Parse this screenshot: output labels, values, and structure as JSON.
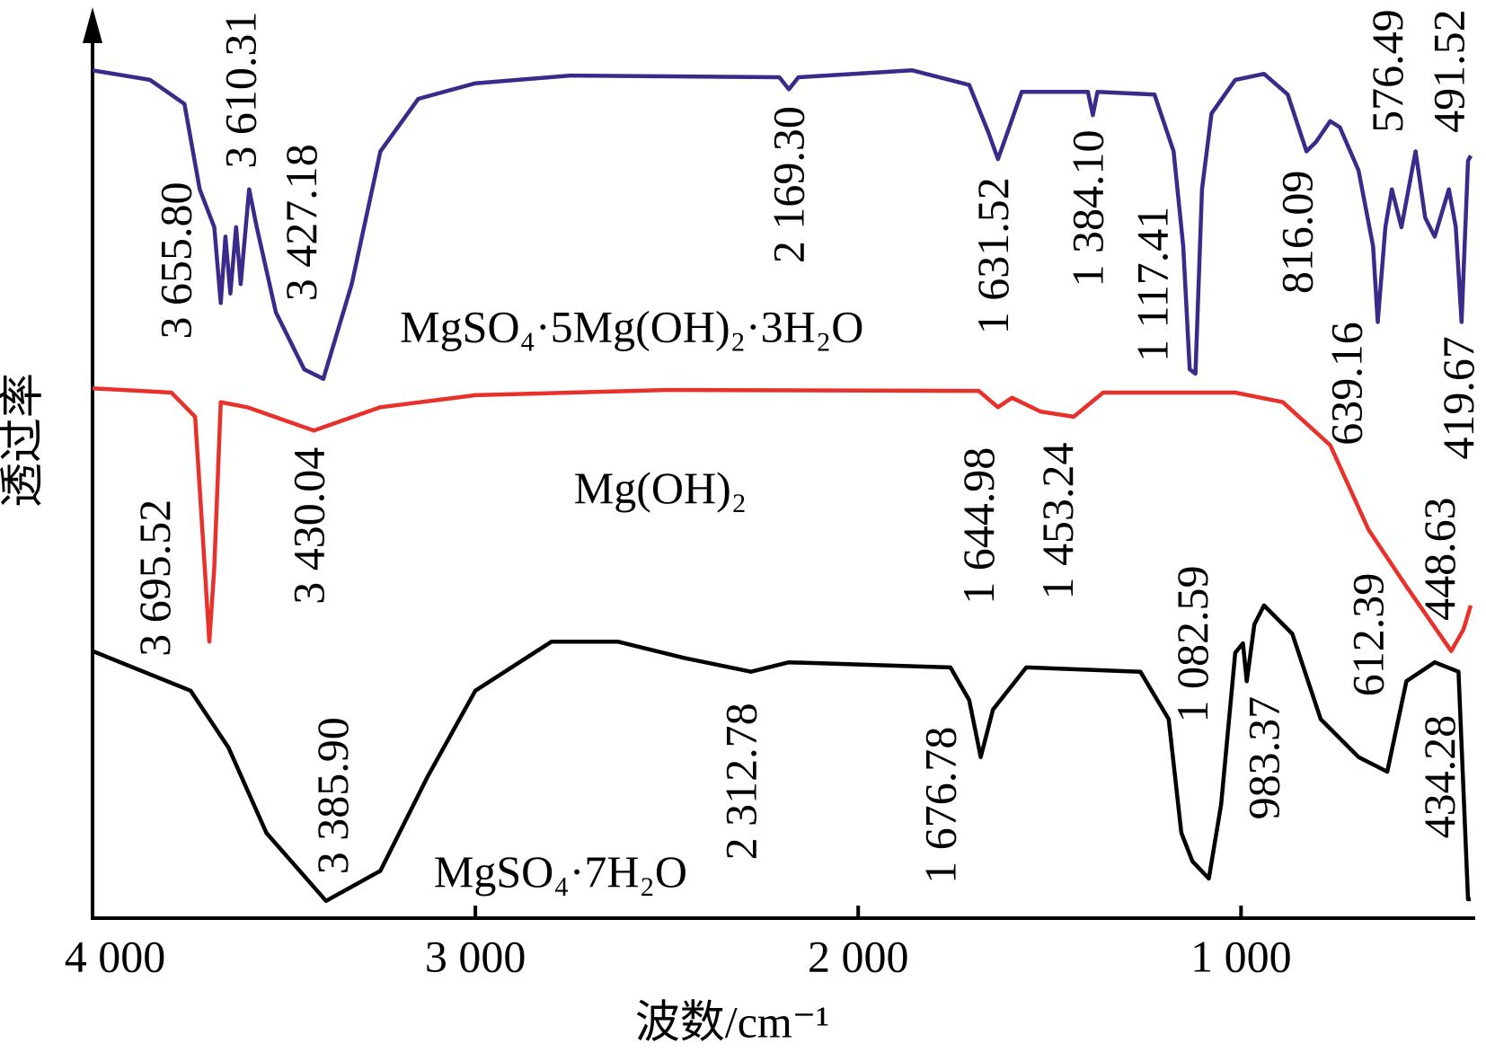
{
  "chart_data": {
    "type": "line",
    "xlabel": "波数/cm⁻¹",
    "ylabel": "透过率",
    "xlim": [
      4000,
      400
    ],
    "ylim": [
      0,
      100
    ],
    "xticks": [
      {
        "value": 4000,
        "label": "4 000"
      },
      {
        "value": 3000,
        "label": "3 000"
      },
      {
        "value": 2000,
        "label": "2 000"
      },
      {
        "value": 1000,
        "label": "1 000"
      }
    ],
    "series": [
      {
        "name": "MgSO₄·5Mg(OH)₂·3H₂O",
        "color": "#3b2a8a",
        "x": [
          4000,
          3850,
          3760,
          3720,
          3682,
          3665,
          3653,
          3640,
          3625,
          3613,
          3591,
          3571,
          3521,
          3447,
          3397,
          3323,
          3248,
          3149,
          3000,
          2752,
          2206,
          2181,
          2156,
          1859,
          1710,
          1660,
          1635,
          1610,
          1573,
          1400,
          1387,
          1375,
          1226,
          1176,
          1151,
          1134,
          1119,
          1102,
          1077,
          1015,
          940,
          878,
          829,
          804,
          767,
          742,
          693,
          655,
          643,
          623,
          606,
          581,
          544,
          519,
          494,
          457,
          439,
          424,
          407,
          400
        ],
        "values": [
          98.4,
          97.3,
          94.5,
          84.6,
          80.2,
          71.4,
          79.1,
          72.5,
          80.2,
          73.6,
          84.6,
          80.2,
          70.3,
          63.7,
          62.6,
          73.6,
          89.0,
          95.1,
          96.9,
          97.8,
          97.6,
          96.2,
          97.6,
          98.4,
          96.7,
          91.2,
          88.1,
          91.2,
          95.9,
          95.9,
          93.2,
          95.9,
          95.6,
          89.0,
          78.0,
          63.7,
          63.2,
          84.6,
          93.4,
          97.3,
          98.0,
          95.6,
          89.0,
          90.1,
          92.5,
          91.8,
          86.8,
          78.0,
          69.2,
          80.2,
          84.6,
          80.2,
          89.0,
          81.3,
          79.1,
          84.6,
          80.2,
          69.2,
          87.9,
          88.5
        ]
      },
      {
        "name": "Mg(OH)₂",
        "color": "#e8312a",
        "x": [
          4000,
          3794,
          3732,
          3707,
          3695,
          3682,
          3665,
          3596,
          3422,
          3248,
          3000,
          2504,
          1685,
          1635,
          1598,
          1524,
          1437,
          1360,
          1015,
          891,
          767,
          667,
          568,
          451,
          419,
          400
        ],
        "values": [
          61.5,
          61.0,
          58.2,
          40.7,
          32.1,
          40.7,
          59.9,
          59.3,
          56.6,
          59.3,
          60.7,
          61.3,
          61.2,
          59.3,
          60.4,
          58.8,
          58.2,
          61.0,
          61.0,
          59.9,
          54.9,
          45.1,
          38.5,
          31.0,
          33.5,
          36.3
        ]
      },
      {
        "name": "MgSO₄·7H₂O",
        "color": "#000000",
        "x": [
          4000,
          3744,
          3645,
          3546,
          3390,
          3248,
          3124,
          3000,
          2801,
          2628,
          2454,
          2280,
          2181,
          1759,
          1710,
          1680,
          1648,
          1561,
          1263,
          1189,
          1156,
          1127,
          1084,
          1052,
          1015,
          995,
          985,
          965,
          940,
          866,
          792,
          693,
          618,
          568,
          494,
          432,
          407,
          400
        ],
        "values": [
          31.0,
          26.4,
          19.8,
          9.9,
          2.0,
          5.5,
          16.5,
          26.4,
          32.1,
          32.1,
          30.2,
          28.6,
          29.7,
          29.1,
          25.3,
          18.7,
          24.2,
          29.1,
          28.6,
          23.1,
          9.9,
          6.6,
          4.6,
          13.2,
          30.8,
          31.9,
          27.5,
          34.1,
          36.3,
          33.0,
          23.1,
          18.7,
          17.0,
          27.5,
          29.7,
          28.6,
          2.2,
          2.2
        ]
      }
    ],
    "annotations": [
      {
        "value": 3655.8,
        "label": "3 655.80"
      },
      {
        "value": 3610.31,
        "label": "3 610.31"
      },
      {
        "value": 3427.18,
        "label": "3 427.18"
      },
      {
        "value": 2169.3,
        "label": "2 169.30"
      },
      {
        "value": 1631.52,
        "label": "1 631.52"
      },
      {
        "value": 1384.1,
        "label": "1 384.10"
      },
      {
        "value": 1117.41,
        "label": "1 117.41"
      },
      {
        "value": 816.09,
        "label": "816.09"
      },
      {
        "value": 639.16,
        "label": "639.16"
      },
      {
        "value": 576.49,
        "label": "576.49"
      },
      {
        "value": 491.52,
        "label": "491.52"
      },
      {
        "value": 419.67,
        "label": "419.67"
      },
      {
        "value": 3695.52,
        "label": "3 695.52"
      },
      {
        "value": 3430.04,
        "label": "3 430.04"
      },
      {
        "value": 1644.98,
        "label": "1 644.98"
      },
      {
        "value": 1453.24,
        "label": "1 453.24"
      },
      {
        "value": 448.63,
        "label": "448.63"
      },
      {
        "value": 3385.9,
        "label": "3 385.90"
      },
      {
        "value": 2312.78,
        "label": "2 312.78"
      },
      {
        "value": 1676.78,
        "label": "1 676.78"
      },
      {
        "value": 1082.59,
        "label": "1 082.59"
      },
      {
        "value": 983.37,
        "label": "983.37"
      },
      {
        "value": 612.39,
        "label": "612.39"
      },
      {
        "value": 434.28,
        "label": "434.28"
      }
    ]
  }
}
